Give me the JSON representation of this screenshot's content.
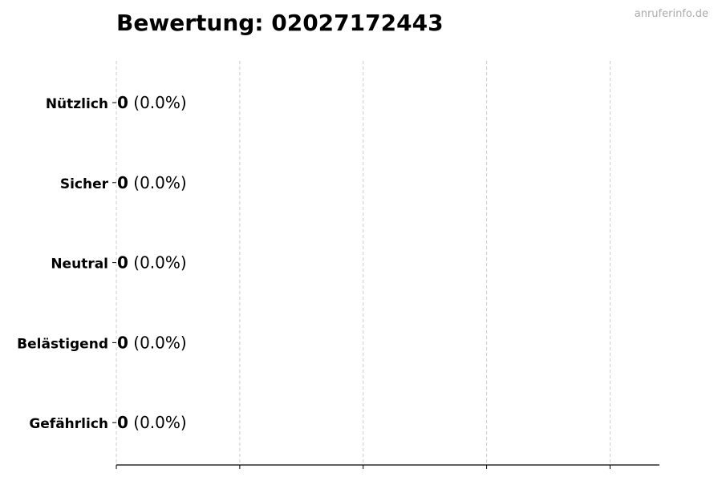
{
  "watermark": "anruferinfo.de",
  "chart_data": {
    "type": "bar",
    "orientation": "horizontal",
    "title": "Bewertung: 02027172443",
    "categories": [
      "Nützlich",
      "Sicher",
      "Neutral",
      "Belästigend",
      "Gefährlich"
    ],
    "values": [
      0,
      0,
      0,
      0,
      0
    ],
    "labels": [
      {
        "count": "0",
        "percent": "(0.0%)"
      },
      {
        "count": "0",
        "percent": "(0.0%)"
      },
      {
        "count": "0",
        "percent": "(0.0%)"
      },
      {
        "count": "0",
        "percent": "(0.0%)"
      },
      {
        "count": "0",
        "percent": "(0.0%)"
      }
    ],
    "xlim": [
      0,
      4.4
    ],
    "xticks": [
      0,
      1,
      2,
      3,
      4
    ],
    "xtick_labels_shown": false,
    "grid": "x dashed",
    "bar_edge_color": "#333333",
    "grid_color": "#cccccc"
  }
}
